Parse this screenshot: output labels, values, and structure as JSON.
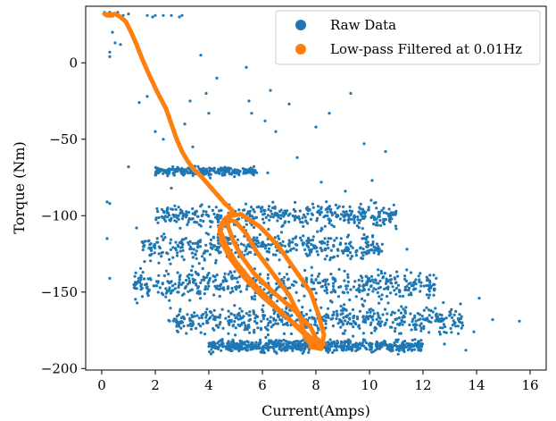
{
  "chart_data": {
    "type": "scatter",
    "title": "",
    "xlabel": "Current(Amps)",
    "ylabel": "Torque (Nm)",
    "xlim": [
      -0.6,
      16.6
    ],
    "ylim": [
      -201,
      37
    ],
    "xticks": [
      0,
      2,
      4,
      6,
      8,
      10,
      12,
      14,
      16
    ],
    "yticks": [
      0,
      -50,
      -100,
      -150,
      -200
    ],
    "grid": false,
    "legend_position": "top-right",
    "series": [
      {
        "name": "Raw Data",
        "kind": "scatter",
        "color": "#1f77b4",
        "clusters": [
          {
            "x_range": [
              2.0,
              5.8
            ],
            "y_center": -71,
            "y_spread": 3,
            "count": 260
          },
          {
            "x_range": [
              2.0,
              11.0
            ],
            "y_center": -100,
            "y_spread": 8,
            "count": 420
          },
          {
            "x_range": [
              1.5,
              10.5
            ],
            "y_center": -120,
            "y_spread": 9,
            "count": 420
          },
          {
            "x_range": [
              1.2,
              12.5
            ],
            "y_center": -145,
            "y_spread": 10,
            "count": 520
          },
          {
            "x_range": [
              2.5,
              13.5
            ],
            "y_center": -168,
            "y_spread": 9,
            "count": 520
          },
          {
            "x_range": [
              4.0,
              12.0
            ],
            "y_center": -185,
            "y_spread": 4,
            "count": 650
          }
        ],
        "points": [
          [
            0.1,
            33
          ],
          [
            0.2,
            32
          ],
          [
            0.15,
            31
          ],
          [
            0.3,
            33
          ],
          [
            0.5,
            32
          ],
          [
            0.6,
            33
          ],
          [
            0.8,
            31
          ],
          [
            1.0,
            32
          ],
          [
            1.7,
            31
          ],
          [
            2.0,
            31
          ],
          [
            2.3,
            31
          ],
          [
            2.6,
            31
          ],
          [
            2.9,
            30
          ],
          [
            3.0,
            31
          ],
          [
            1.9,
            30
          ],
          [
            0.3,
            7
          ],
          [
            0.5,
            13
          ],
          [
            0.4,
            20
          ],
          [
            0.7,
            12
          ],
          [
            0.3,
            4
          ],
          [
            1.7,
            -22
          ],
          [
            2.0,
            -45
          ],
          [
            2.3,
            -50
          ],
          [
            1.4,
            -26
          ],
          [
            2.8,
            -70
          ],
          [
            2.6,
            -82
          ],
          [
            3.3,
            -25
          ],
          [
            3.1,
            -40
          ],
          [
            3.4,
            -55
          ],
          [
            3.9,
            -20
          ],
          [
            4.0,
            -33
          ],
          [
            4.3,
            -10
          ],
          [
            3.7,
            5
          ],
          [
            5.5,
            -25
          ],
          [
            5.6,
            -33
          ],
          [
            6.1,
            -38
          ],
          [
            6.5,
            -45
          ],
          [
            7.0,
            -27
          ],
          [
            8.5,
            -33
          ],
          [
            8.0,
            -42
          ],
          [
            9.8,
            -53
          ],
          [
            10.6,
            -58
          ],
          [
            7.3,
            -62
          ],
          [
            6.2,
            -72
          ],
          [
            8.2,
            -78
          ],
          [
            9.1,
            -84
          ],
          [
            10.1,
            -77
          ],
          [
            10.9,
            -98
          ],
          [
            11.4,
            -122
          ],
          [
            0.2,
            -91
          ],
          [
            0.3,
            -92
          ],
          [
            0.2,
            -115
          ],
          [
            0.3,
            -141
          ],
          [
            1.0,
            -68
          ],
          [
            1.3,
            -108
          ],
          [
            1.6,
            -130
          ],
          [
            13.2,
            -170
          ],
          [
            13.9,
            -176
          ],
          [
            14.6,
            -168
          ],
          [
            15.6,
            -169
          ],
          [
            14.1,
            -154
          ],
          [
            12.4,
            -152
          ],
          [
            13.0,
            -163
          ],
          [
            11.7,
            -181
          ],
          [
            12.8,
            -184
          ],
          [
            13.6,
            -188
          ],
          [
            5.4,
            -3
          ],
          [
            6.3,
            -18
          ],
          [
            9.3,
            -20
          ]
        ]
      },
      {
        "name": "Low-pass Filtered at 0.01Hz",
        "kind": "line",
        "color": "#ff7f0e",
        "points": [
          [
            0.1,
            32
          ],
          [
            0.4,
            31
          ],
          [
            0.2,
            31
          ],
          [
            0.5,
            32
          ],
          [
            0.7,
            30
          ],
          [
            0.9,
            27
          ],
          [
            1.1,
            20
          ],
          [
            1.3,
            12
          ],
          [
            1.5,
            3
          ],
          [
            1.8,
            -9
          ],
          [
            2.1,
            -20
          ],
          [
            2.4,
            -30
          ],
          [
            2.6,
            -40
          ],
          [
            2.8,
            -50
          ],
          [
            3.0,
            -58
          ],
          [
            3.2,
            -64
          ],
          [
            3.4,
            -69
          ],
          [
            3.7,
            -74
          ],
          [
            4.0,
            -80
          ],
          [
            4.3,
            -86
          ],
          [
            4.6,
            -92
          ],
          [
            4.9,
            -97
          ],
          [
            4.6,
            -103
          ],
          [
            4.4,
            -110
          ],
          [
            4.5,
            -118
          ],
          [
            4.8,
            -128
          ],
          [
            5.3,
            -140
          ],
          [
            6.0,
            -153
          ],
          [
            6.8,
            -165
          ],
          [
            7.5,
            -175
          ],
          [
            8.0,
            -183
          ],
          [
            7.8,
            -186
          ],
          [
            8.2,
            -187
          ],
          [
            8.3,
            -178
          ],
          [
            8.1,
            -165
          ],
          [
            7.8,
            -150
          ],
          [
            7.2,
            -135
          ],
          [
            6.6,
            -120
          ],
          [
            5.9,
            -107
          ],
          [
            5.2,
            -99
          ],
          [
            4.8,
            -100
          ],
          [
            4.7,
            -106
          ],
          [
            4.9,
            -116
          ],
          [
            5.2,
            -126
          ],
          [
            5.7,
            -138
          ],
          [
            6.4,
            -150
          ],
          [
            7.2,
            -162
          ],
          [
            7.8,
            -173
          ],
          [
            8.0,
            -180
          ],
          [
            8.3,
            -184
          ],
          [
            7.9,
            -186
          ],
          [
            7.6,
            -180
          ],
          [
            7.4,
            -166
          ],
          [
            7.0,
            -152
          ],
          [
            6.4,
            -138
          ],
          [
            5.8,
            -124
          ],
          [
            5.4,
            -112
          ],
          [
            5.0,
            -104
          ],
          [
            4.6,
            -102
          ],
          [
            4.4,
            -108
          ],
          [
            4.6,
            -118
          ],
          [
            5.0,
            -130
          ],
          [
            5.6,
            -143
          ],
          [
            6.3,
            -156
          ],
          [
            7.0,
            -168
          ],
          [
            7.6,
            -178
          ],
          [
            7.9,
            -183
          ]
        ]
      }
    ]
  }
}
